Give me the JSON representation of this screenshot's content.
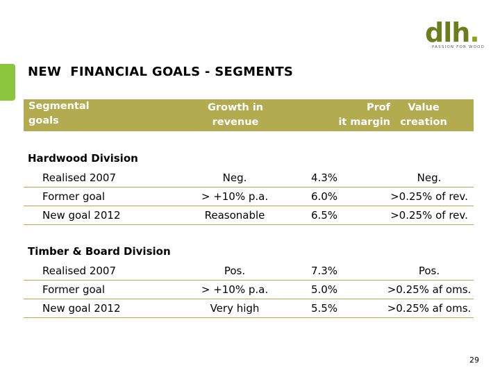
{
  "logo": {
    "text": "dlh",
    "dot": ".",
    "tagline": "PASSION FOR WOOD"
  },
  "title": "NEW  FINANCIAL GOALS - SEGMENTS",
  "header": {
    "segmental_line1": "Segmental",
    "segmental_line2": "goals",
    "growth_line1": "Growth in",
    "growth_line2": "revenue",
    "margin_line1": "Prof",
    "margin_line2": "it margin",
    "value_line1": "Value",
    "value_line2": "creation"
  },
  "sections": [
    {
      "title": "Hardwood Division",
      "rows": [
        {
          "label": "Realised 2007",
          "growth": "Neg.",
          "margin": "4.3%",
          "value": "Neg."
        },
        {
          "label": "Former goal",
          "growth": "> +10% p.a.",
          "margin": "6.0%",
          "value": ">0.25% of rev."
        },
        {
          "label": "New goal 2012",
          "growth": "Reasonable",
          "margin": "6.5%",
          "value": ">0.25% of rev."
        }
      ]
    },
    {
      "title": "Timber & Board Division",
      "rows": [
        {
          "label": "Realised 2007",
          "growth": "Pos.",
          "margin": "7.3%",
          "value": "Pos."
        },
        {
          "label": "Former goal",
          "growth": "> +10% p.a.",
          "margin": "5.0%",
          "value": ">0.25% af oms."
        },
        {
          "label": "New goal 2012",
          "growth": "Very high",
          "margin": "5.5%",
          "value": ">0.25% af oms."
        }
      ]
    }
  ],
  "page_number": "29",
  "colors": {
    "header_band": "#b3ab50",
    "accent_bar": "#8cc63f",
    "logo": "#6b7e1e"
  }
}
